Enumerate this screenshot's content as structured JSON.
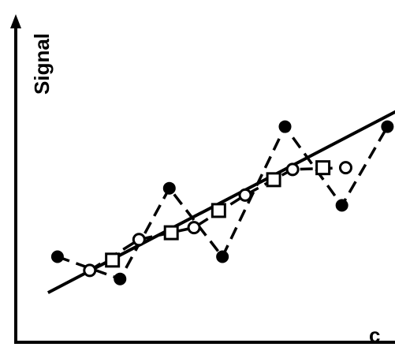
{
  "chart_data": {
    "type": "scatter",
    "title": "",
    "ylabel": "Signal",
    "xlabel": "c",
    "xlim": [
      0,
      10
    ],
    "ylim": [
      0,
      10
    ],
    "grid": false,
    "legend": "none",
    "series": [
      {
        "marker": "filled-circle",
        "line": "dashed",
        "x": [
          1.1,
          2.75,
          4.05,
          5.45,
          7.1,
          8.6,
          9.8
        ],
        "y": [
          2.5,
          1.85,
          4.5,
          2.5,
          6.3,
          4.0,
          6.3
        ]
      },
      {
        "marker": "open-circle",
        "line": "dashed",
        "x": [
          1.95,
          3.25,
          4.7,
          6.05,
          7.3,
          8.7
        ],
        "y": [
          2.1,
          3.0,
          3.35,
          4.3,
          5.05,
          5.1
        ]
      },
      {
        "marker": "open-square",
        "line": "none",
        "x": [
          2.55,
          4.1,
          5.35,
          6.8,
          8.1
        ],
        "y": [
          2.4,
          3.2,
          3.85,
          4.75,
          5.1
        ]
      },
      {
        "marker": "none",
        "line": "solid",
        "x": [
          0.85,
          10.3
        ],
        "y": [
          1.45,
          6.9
        ]
      }
    ]
  }
}
